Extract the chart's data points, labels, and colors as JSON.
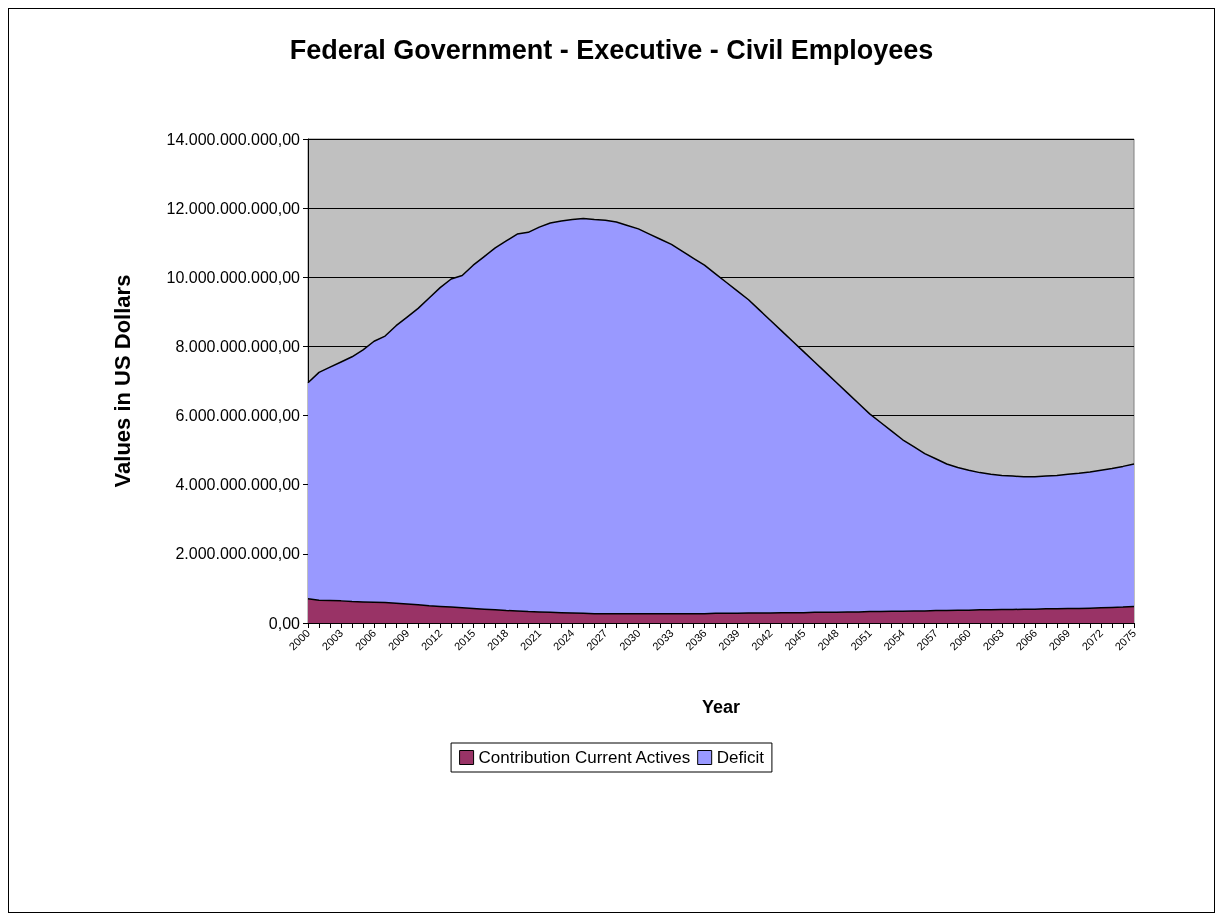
{
  "chart_data": {
    "type": "area",
    "title": "Federal Government - Executive - Civil Employees",
    "xlabel": "Year",
    "ylabel": "Values in US Dollars",
    "stacked": true,
    "grid": "y",
    "legend": "bottom",
    "categories": [
      "2000",
      null,
      null,
      "2003",
      null,
      null,
      "2006",
      null,
      null,
      "2009",
      null,
      null,
      "2012",
      null,
      null,
      "2015",
      null,
      null,
      "2018",
      null,
      null,
      "2021",
      null,
      null,
      "2024",
      null,
      null,
      "2027",
      null,
      null,
      "2030",
      null,
      null,
      "2033",
      null,
      null,
      "2036",
      null,
      null,
      "2039",
      null,
      null,
      "2042",
      null,
      null,
      "2045",
      null,
      null,
      "2048",
      null,
      null,
      "2051",
      null,
      null,
      "2054",
      null,
      null,
      "2057",
      null,
      null,
      "2060",
      null,
      null,
      "2063",
      null,
      null,
      "2066",
      null,
      null,
      "2069",
      null,
      null,
      "2072",
      null,
      null,
      "2075"
    ],
    "ylim": [
      0,
      14000000000
    ],
    "yticks": [
      {
        "value": 0,
        "label": "0,00"
      },
      {
        "value": 2000000000,
        "label": "2.000.000.000,00"
      },
      {
        "value": 4000000000,
        "label": "4.000.000.000,00"
      },
      {
        "value": 6000000000,
        "label": "6.000.000.000,00"
      },
      {
        "value": 8000000000,
        "label": "8.000.000.000,00"
      },
      {
        "value": 10000000000,
        "label": "10.000.000.000,00"
      },
      {
        "value": 12000000000,
        "label": "12.000.000.000,00"
      },
      {
        "value": 14000000000,
        "label": "14.000.000.000,00"
      }
    ],
    "series": [
      {
        "name": "Contribution Current Actives",
        "color": "#993366",
        "values": [
          700000000.0,
          660000000.0,
          650000000.0,
          640000000.0,
          620000000.0,
          610000000.0,
          600000000.0,
          590000000.0,
          570000000.0,
          550000000.0,
          530000000.0,
          500000000.0,
          480000000.0,
          460000000.0,
          440000000.0,
          420000000.0,
          400000000.0,
          380000000.0,
          360000000.0,
          350000000.0,
          330000000.0,
          320000000.0,
          310000000.0,
          300000000.0,
          290000000.0,
          280000000.0,
          270000000.0,
          270000000.0,
          270000000.0,
          270000000.0,
          270000000.0,
          270000000.0,
          270000000.0,
          270000000.0,
          270000000.0,
          270000000.0,
          270000000.0,
          280000000.0,
          280000000.0,
          280000000.0,
          290000000.0,
          290000000.0,
          290000000.0,
          300000000.0,
          300000000.0,
          300000000.0,
          310000000.0,
          310000000.0,
          310000000.0,
          320000000.0,
          320000000.0,
          330000000.0,
          330000000.0,
          340000000.0,
          340000000.0,
          350000000.0,
          350000000.0,
          360000000.0,
          360000000.0,
          370000000.0,
          370000000.0,
          380000000.0,
          380000000.0,
          390000000.0,
          390000000.0,
          400000000.0,
          400000000.0,
          410000000.0,
          410000000.0,
          420000000.0,
          420000000.0,
          430000000.0,
          440000000.0,
          450000000.0,
          460000000.0,
          480000000.0
        ]
      },
      {
        "name": "Deficit",
        "color": "#9999ff",
        "values": [
          6250000000.0,
          6590000000.0,
          6750000000.0,
          6910000000.0,
          7080000000.0,
          7290000000.0,
          7550000000.0,
          7710000000.0,
          8030000000.0,
          8300000000.0,
          8570000000.0,
          8900000000.0,
          9220000000.0,
          9490000000.0,
          9610000000.0,
          9930000000.0,
          10200000000.0,
          10470000000.0,
          10690000000.0,
          10900000000.0,
          10970000000.0,
          11130000000.0,
          11260000000.0,
          11330000000.0,
          11380000000.0,
          11420000000.0,
          11400000000.0,
          11380000000.0,
          11330000000.0,
          11230000000.0,
          11130000000.0,
          10980000000.0,
          10830000000.0,
          10680000000.0,
          10480000000.0,
          10280000000.0,
          10080000000.0,
          9820000000.0,
          9570000000.0,
          9320000000.0,
          9060000000.0,
          8760000000.0,
          8460000000.0,
          8150000000.0,
          7850000000.0,
          7550000000.0,
          7240000000.0,
          6940000000.0,
          6640000000.0,
          6330000000.0,
          6030000000.0,
          5720000000.0,
          5470000000.0,
          5210000000.0,
          4960000000.0,
          4750000000.0,
          4550000000.0,
          4390000000.0,
          4240000000.0,
          4130000000.0,
          4050000000.0,
          3970000000.0,
          3920000000.0,
          3880000000.0,
          3860000000.0,
          3830000000.0,
          3830000000.0,
          3840000000.0,
          3860000000.0,
          3880000000.0,
          3910000000.0,
          3940000000.0,
          3980000000.0,
          4020000000.0,
          4070000000.0,
          4120000000.0
        ]
      }
    ]
  }
}
